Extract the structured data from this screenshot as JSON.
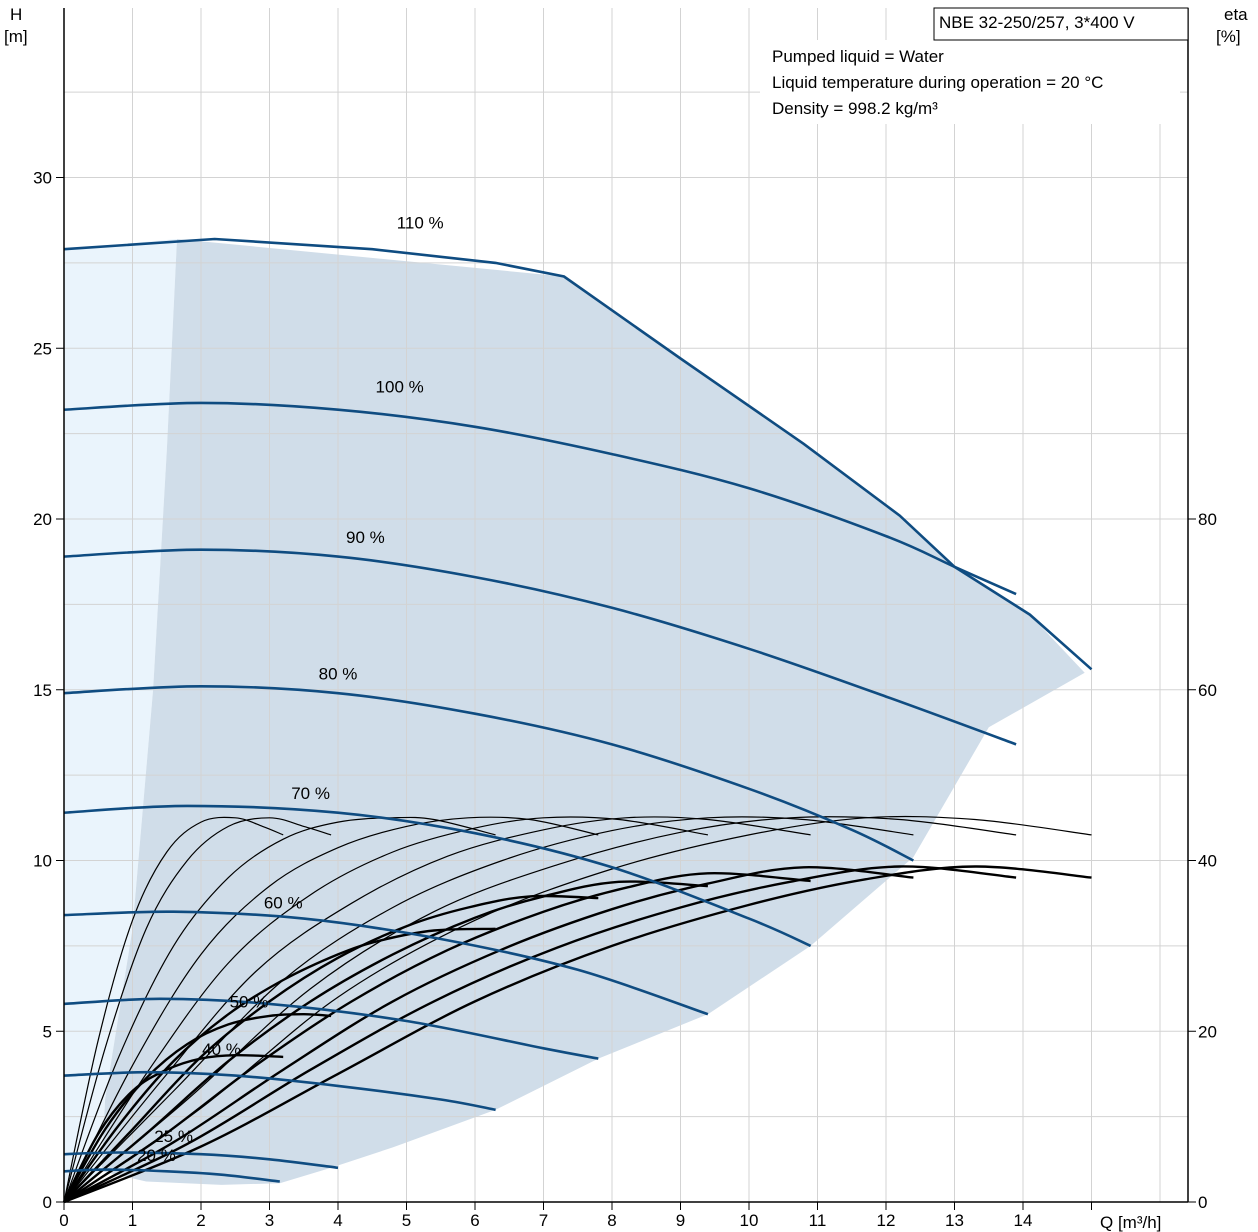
{
  "chart_data": {
    "type": "line",
    "title": "NBE 32-250/257, 3*400 V",
    "ylabel": "H",
    "yunit": "[m]",
    "y2label": "eta",
    "y2unit": "[%]",
    "xlabel": "Q [m³/h]",
    "xlim": [
      0,
      16
    ],
    "ylim": [
      0,
      35
    ],
    "y2lim": [
      0,
      140
    ],
    "x_ticks": [
      "0",
      "1",
      "2",
      "3",
      "4",
      "5",
      "6",
      "7",
      "8",
      "9",
      "10",
      "11",
      "12",
      "13",
      "14"
    ],
    "y_ticks": [
      "0",
      "5",
      "10",
      "15",
      "20",
      "25",
      "30"
    ],
    "y2_ticks": [
      "0",
      "20",
      "40",
      "60",
      "80"
    ],
    "grid": true,
    "info_lines": [
      "Pumped liquid = Water",
      "Liquid temperature during operation = 20 °C",
      "Density = 998.2 kg/m³"
    ],
    "colors": {
      "head_curve": "#0f4c81",
      "operating_area": "#d0dde9",
      "low_flow_area": "#eaf4fc",
      "eta_curve": "#000000",
      "grid": "#d3d3d3"
    },
    "series": [
      {
        "name": "110 %",
        "label_at": [
          5.2,
          28.5
        ],
        "x": [
          0,
          2.2,
          4.5,
          6.3,
          7.3,
          9.0,
          10.8,
          12.2,
          13.0,
          14.1,
          15.0
        ],
        "y": [
          27.9,
          28.2,
          27.9,
          27.5,
          27.1,
          24.7,
          22.2,
          20.1,
          18.6,
          17.2,
          15.6
        ]
      },
      {
        "name": "100 %",
        "label_at": [
          4.9,
          23.7
        ],
        "x": [
          0,
          2.0,
          4.0,
          6.0,
          8.0,
          10.0,
          12.0,
          13.0,
          13.9
        ],
        "y": [
          23.2,
          23.4,
          23.2,
          22.7,
          21.9,
          20.9,
          19.5,
          18.6,
          17.8
        ]
      },
      {
        "name": "90 %",
        "label_at": [
          4.4,
          19.3
        ],
        "x": [
          0,
          2.0,
          4.0,
          6.0,
          8.0,
          10.0,
          12.0,
          13.9
        ],
        "y": [
          18.9,
          19.1,
          18.9,
          18.3,
          17.4,
          16.2,
          14.8,
          13.4
        ]
      },
      {
        "name": "80 %",
        "label_at": [
          4.0,
          15.3
        ],
        "x": [
          0,
          2.0,
          4.0,
          6.0,
          8.0,
          10.0,
          11.5,
          12.4
        ],
        "y": [
          14.9,
          15.1,
          14.9,
          14.3,
          13.4,
          12.1,
          10.9,
          10.0
        ]
      },
      {
        "name": "70 %",
        "label_at": [
          3.6,
          11.8
        ],
        "x": [
          0,
          1.8,
          4.0,
          6.0,
          8.0,
          10.0,
          10.9
        ],
        "y": [
          11.4,
          11.6,
          11.4,
          10.8,
          9.8,
          8.3,
          7.5
        ]
      },
      {
        "name": "60 %",
        "label_at": [
          3.2,
          8.6
        ],
        "x": [
          0,
          1.6,
          3.5,
          5.5,
          7.5,
          9.4
        ],
        "y": [
          8.4,
          8.5,
          8.3,
          7.7,
          6.8,
          5.5
        ]
      },
      {
        "name": "50 %",
        "label_at": [
          2.7,
          5.7
        ],
        "x": [
          0,
          1.4,
          3.0,
          5.0,
          7.0,
          7.8
        ],
        "y": [
          5.8,
          5.95,
          5.8,
          5.3,
          4.5,
          4.2
        ]
      },
      {
        "name": "40 %",
        "label_at": [
          2.3,
          4.3
        ],
        "x": [
          0,
          1.2,
          2.5,
          4.0,
          5.5,
          6.3
        ],
        "y": [
          3.7,
          3.8,
          3.7,
          3.4,
          3.0,
          2.7
        ]
      },
      {
        "name": "25 %",
        "label_at": [
          1.6,
          1.75
        ],
        "x": [
          0,
          0.8,
          2.0,
          3.0,
          4.0
        ],
        "y": [
          1.4,
          1.45,
          1.4,
          1.25,
          1.0
        ]
      },
      {
        "name": "20 %",
        "label_at": [
          1.35,
          1.2
        ],
        "x": [
          0,
          0.6,
          1.5,
          2.3,
          3.15
        ],
        "y": [
          0.9,
          0.95,
          0.9,
          0.8,
          0.6
        ]
      }
    ],
    "eta_series_thin": [
      {
        "x": [
          0,
          0.5,
          1,
          1.5,
          2,
          2.5,
          2.9,
          3.2
        ],
        "y": [
          0,
          19,
          33,
          41,
          44.5,
          45,
          44,
          43
        ]
      },
      {
        "x": [
          0,
          0.6,
          1.2,
          1.8,
          2.4,
          3.0,
          3.5,
          3.9
        ],
        "y": [
          0,
          18,
          32,
          40,
          44,
          45,
          44,
          43
        ]
      },
      {
        "x": [
          0,
          0.8,
          1.6,
          2.4,
          3.2,
          4.0,
          4.8,
          5.4,
          6.3
        ],
        "y": [
          0,
          17,
          30,
          38,
          42.5,
          44.5,
          45,
          44.8,
          43
        ]
      },
      {
        "x": [
          0,
          1.0,
          2.0,
          3.0,
          4.0,
          5.0,
          5.9,
          6.8,
          7.8
        ],
        "y": [
          0,
          16,
          29,
          37,
          41.5,
          44,
          45,
          44.8,
          43
        ]
      },
      {
        "x": [
          0,
          1.2,
          2.4,
          3.6,
          4.8,
          6.0,
          7.0,
          8.1,
          9.4
        ],
        "y": [
          0,
          15,
          28,
          36,
          41,
          43.8,
          45,
          44.8,
          43
        ]
      },
      {
        "x": [
          0,
          1.4,
          2.8,
          4.2,
          5.6,
          7.0,
          8.2,
          9.4,
          10.9
        ],
        "y": [
          0,
          14,
          27,
          35,
          40.5,
          43.6,
          45,
          44.8,
          43
        ]
      },
      {
        "x": [
          0,
          1.6,
          3.2,
          4.8,
          6.4,
          8.0,
          9.4,
          10.8,
          12.4
        ],
        "y": [
          0,
          13,
          26,
          34.5,
          40,
          43.5,
          45,
          44.8,
          43
        ]
      },
      {
        "x": [
          0,
          1.8,
          3.6,
          5.4,
          7.2,
          9.0,
          10.6,
          12.2,
          13.9
        ],
        "y": [
          0,
          12,
          25,
          34,
          39.5,
          43.3,
          45,
          44.8,
          43
        ]
      },
      {
        "x": [
          0,
          2.0,
          4.0,
          6.0,
          8.0,
          10.0,
          11.7,
          13.3,
          15.0
        ],
        "y": [
          0,
          11,
          24,
          33,
          39,
          43,
          45,
          44.8,
          43
        ]
      }
    ],
    "eta_series_thick": [
      {
        "x": [
          0,
          0.5,
          1,
          1.5,
          2,
          2.5,
          3.2
        ],
        "y": [
          0,
          8,
          13,
          15.5,
          16.8,
          17.2,
          17
        ]
      },
      {
        "x": [
          0,
          0.6,
          1.2,
          1.8,
          2.4,
          3.0,
          3.5,
          3.9
        ],
        "y": [
          0,
          8.5,
          14.5,
          18.5,
          20.8,
          21.8,
          22,
          21.8
        ]
      },
      {
        "x": [
          0,
          0.8,
          1.6,
          2.4,
          3.2,
          4.0,
          4.6,
          5.4,
          6.3
        ],
        "y": [
          0,
          9,
          16.5,
          22,
          26,
          29,
          30.6,
          31.8,
          32
        ]
      },
      {
        "x": [
          0,
          1.0,
          2.0,
          3.0,
          4.0,
          5.0,
          5.9,
          6.8,
          7.8
        ],
        "y": [
          0,
          8.5,
          17,
          23.5,
          28.6,
          32.3,
          34.5,
          35.8,
          35.6
        ]
      },
      {
        "x": [
          0,
          1.2,
          2.4,
          3.6,
          4.8,
          6.0,
          7.0,
          8.1,
          9.4
        ],
        "y": [
          0,
          8,
          16.5,
          23.5,
          29,
          33.3,
          35.8,
          37.5,
          37
        ]
      },
      {
        "x": [
          0,
          1.4,
          2.8,
          4.2,
          5.6,
          7.0,
          8.2,
          9.4,
          10.9
        ],
        "y": [
          0,
          7.5,
          16,
          23.5,
          29.5,
          34,
          36.8,
          38.5,
          37.6
        ]
      },
      {
        "x": [
          0,
          1.6,
          3.2,
          4.8,
          6.4,
          8.0,
          9.4,
          10.8,
          12.4
        ],
        "y": [
          0,
          7,
          15.5,
          23.5,
          29.6,
          34.3,
          37.3,
          39.2,
          38
        ]
      },
      {
        "x": [
          0,
          1.8,
          3.6,
          5.4,
          7.2,
          9.0,
          10.6,
          12.2,
          13.9
        ],
        "y": [
          0,
          6.8,
          15.5,
          23.5,
          29.8,
          34.5,
          37.5,
          39.3,
          38
        ]
      },
      {
        "x": [
          0,
          2.0,
          4.0,
          6.0,
          8.0,
          10.0,
          11.7,
          13.3,
          15.0
        ],
        "y": [
          0,
          6.5,
          15,
          23.5,
          30,
          34.8,
          37.8,
          39.3,
          38
        ]
      }
    ],
    "operating_area_boundary": {
      "x": [
        1.65,
        7.3,
        9.0,
        10.8,
        12.2,
        13.0,
        14.1,
        14.9,
        13.5,
        12.4,
        10.9,
        9.4,
        7.8,
        6.3,
        4.8,
        3.9,
        3.15,
        2.3,
        1.2,
        0.55,
        0.6,
        1.0,
        1.3,
        1.5
      ],
      "y": [
        28.2,
        27.1,
        24.7,
        22.2,
        20.1,
        18.6,
        17.2,
        15.5,
        13.9,
        10.1,
        7.5,
        5.5,
        4.2,
        2.7,
        1.6,
        1.0,
        0.55,
        0.5,
        0.6,
        0.9,
        3.0,
        8.0,
        15.0,
        22.0
      ]
    },
    "low_flow_area_boundary": {
      "x": [
        0,
        1.65,
        1.5,
        1.3,
        1.0,
        0.6,
        0.55,
        0
      ],
      "y": [
        27.9,
        28.2,
        22.0,
        15.0,
        8.0,
        3.0,
        0.9,
        0
      ]
    }
  }
}
